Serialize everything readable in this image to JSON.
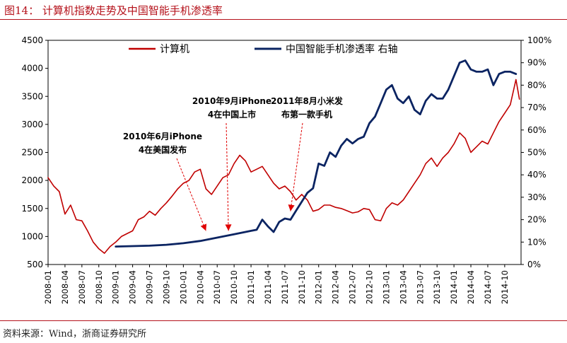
{
  "title": "图14：  计算机指数走势及中国智能手机渗透率",
  "source": "资料来源：Wind，浙商证券研究所",
  "chart_data": {
    "type": "line",
    "x_ticks": [
      "2008-01",
      "2008-04",
      "2008-07",
      "2008-10",
      "2009-01",
      "2009-04",
      "2009-07",
      "2009-10",
      "2010-01",
      "2010-04",
      "2010-07",
      "2010-10",
      "2011-01",
      "2011-04",
      "2011-07",
      "2011-10",
      "2012-01",
      "2012-04",
      "2012-07",
      "2012-10",
      "2013-01",
      "2013-04",
      "2013-07",
      "2013-10",
      "2014-01",
      "2014-04",
      "2014-07",
      "2014-10"
    ],
    "y_left": {
      "min": 500,
      "max": 4500,
      "ticks": [
        500,
        1000,
        1500,
        2000,
        2500,
        3000,
        3500,
        4000,
        4500
      ]
    },
    "y_right": {
      "min": 0,
      "max": 100,
      "ticks": [
        "0%",
        "10%",
        "20%",
        "30%",
        "40%",
        "50%",
        "60%",
        "70%",
        "80%",
        "90%",
        "100%"
      ]
    },
    "legend": {
      "position": "top",
      "items": [
        {
          "label": "计算机",
          "color": "#c00000"
        },
        {
          "label": "中国智能手机渗透率 右轴",
          "color": "#0b2462"
        }
      ]
    },
    "series": [
      {
        "name": "计算机",
        "axis": "left",
        "color": "#c00000",
        "points": [
          [
            "2008-01",
            2050
          ],
          [
            "2008-02",
            1900
          ],
          [
            "2008-03",
            1800
          ],
          [
            "2008-04",
            1400
          ],
          [
            "2008-05",
            1560
          ],
          [
            "2008-06",
            1300
          ],
          [
            "2008-07",
            1280
          ],
          [
            "2008-08",
            1100
          ],
          [
            "2008-09",
            900
          ],
          [
            "2008-10",
            780
          ],
          [
            "2008-11",
            700
          ],
          [
            "2008-12",
            820
          ],
          [
            "2009-01",
            900
          ],
          [
            "2009-02",
            1000
          ],
          [
            "2009-03",
            1050
          ],
          [
            "2009-04",
            1100
          ],
          [
            "2009-05",
            1300
          ],
          [
            "2009-06",
            1350
          ],
          [
            "2009-07",
            1450
          ],
          [
            "2009-08",
            1380
          ],
          [
            "2009-09",
            1500
          ],
          [
            "2009-10",
            1600
          ],
          [
            "2009-11",
            1720
          ],
          [
            "2009-12",
            1850
          ],
          [
            "2010-01",
            1950
          ],
          [
            "2010-02",
            2000
          ],
          [
            "2010-03",
            2150
          ],
          [
            "2010-04",
            2200
          ],
          [
            "2010-05",
            1850
          ],
          [
            "2010-06",
            1750
          ],
          [
            "2010-07",
            1900
          ],
          [
            "2010-08",
            2050
          ],
          [
            "2010-09",
            2100
          ],
          [
            "2010-10",
            2300
          ],
          [
            "2010-11",
            2450
          ],
          [
            "2010-12",
            2350
          ],
          [
            "2011-01",
            2150
          ],
          [
            "2011-02",
            2200
          ],
          [
            "2011-03",
            2250
          ],
          [
            "2011-04",
            2100
          ],
          [
            "2011-05",
            1950
          ],
          [
            "2011-06",
            1850
          ],
          [
            "2011-07",
            1900
          ],
          [
            "2011-08",
            1800
          ],
          [
            "2011-09",
            1650
          ],
          [
            "2011-10",
            1750
          ],
          [
            "2011-11",
            1650
          ],
          [
            "2011-12",
            1450
          ],
          [
            "2012-01",
            1480
          ],
          [
            "2012-02",
            1560
          ],
          [
            "2012-03",
            1560
          ],
          [
            "2012-04",
            1520
          ],
          [
            "2012-05",
            1500
          ],
          [
            "2012-06",
            1460
          ],
          [
            "2012-07",
            1420
          ],
          [
            "2012-08",
            1440
          ],
          [
            "2012-09",
            1500
          ],
          [
            "2012-10",
            1480
          ],
          [
            "2012-11",
            1300
          ],
          [
            "2012-12",
            1280
          ],
          [
            "2013-01",
            1500
          ],
          [
            "2013-02",
            1600
          ],
          [
            "2013-03",
            1560
          ],
          [
            "2013-04",
            1650
          ],
          [
            "2013-05",
            1800
          ],
          [
            "2013-06",
            1950
          ],
          [
            "2013-07",
            2100
          ],
          [
            "2013-08",
            2300
          ],
          [
            "2013-09",
            2400
          ],
          [
            "2013-10",
            2250
          ],
          [
            "2013-11",
            2400
          ],
          [
            "2013-12",
            2500
          ],
          [
            "2014-01",
            2650
          ],
          [
            "2014-02",
            2850
          ],
          [
            "2014-03",
            2750
          ],
          [
            "2014-04",
            2500
          ],
          [
            "2014-05",
            2600
          ],
          [
            "2014-06",
            2700
          ],
          [
            "2014-07",
            2650
          ],
          [
            "2014-08",
            2850
          ],
          [
            "2014-09",
            3050
          ],
          [
            "2014-10",
            3200
          ],
          [
            "2014-11",
            3350
          ],
          [
            "2014-12",
            3800
          ],
          [
            "2014-12-20",
            3450
          ]
        ]
      },
      {
        "name": "中国智能手机渗透率 右轴",
        "axis": "right",
        "color": "#0b2462",
        "points": [
          [
            "2009-01",
            8
          ],
          [
            "2009-04",
            8.2
          ],
          [
            "2009-07",
            8.4
          ],
          [
            "2009-10",
            8.8
          ],
          [
            "2010-01",
            9.5
          ],
          [
            "2010-04",
            10.5
          ],
          [
            "2010-07",
            12
          ],
          [
            "2010-10",
            13.5
          ],
          [
            "2011-01",
            15
          ],
          [
            "2011-02",
            15.5
          ],
          [
            "2011-03",
            20
          ],
          [
            "2011-04",
            17
          ],
          [
            "2011-05",
            14.5
          ],
          [
            "2011-06",
            19
          ],
          [
            "2011-07",
            20.5
          ],
          [
            "2011-08",
            20
          ],
          [
            "2011-09",
            24
          ],
          [
            "2011-10",
            28
          ],
          [
            "2011-11",
            32
          ],
          [
            "2011-12",
            34
          ],
          [
            "2012-01",
            45
          ],
          [
            "2012-02",
            44
          ],
          [
            "2012-03",
            50
          ],
          [
            "2012-04",
            48
          ],
          [
            "2012-05",
            53
          ],
          [
            "2012-06",
            56
          ],
          [
            "2012-07",
            54
          ],
          [
            "2012-08",
            56
          ],
          [
            "2012-09",
            57
          ],
          [
            "2012-10",
            63
          ],
          [
            "2012-11",
            66
          ],
          [
            "2012-12",
            72
          ],
          [
            "2013-01",
            78
          ],
          [
            "2013-02",
            80
          ],
          [
            "2013-03",
            74
          ],
          [
            "2013-04",
            72
          ],
          [
            "2013-05",
            75
          ],
          [
            "2013-06",
            69
          ],
          [
            "2013-07",
            67
          ],
          [
            "2013-08",
            73
          ],
          [
            "2013-09",
            76
          ],
          [
            "2013-10",
            74
          ],
          [
            "2013-11",
            74
          ],
          [
            "2013-12",
            78
          ],
          [
            "2014-01",
            84
          ],
          [
            "2014-02",
            90
          ],
          [
            "2014-03",
            91
          ],
          [
            "2014-04",
            87
          ],
          [
            "2014-05",
            86
          ],
          [
            "2014-06",
            86
          ],
          [
            "2014-07",
            87
          ],
          [
            "2014-08",
            80
          ],
          [
            "2014-09",
            85
          ],
          [
            "2014-10",
            86
          ],
          [
            "2014-11",
            86
          ],
          [
            "2014-12",
            85
          ]
        ]
      }
    ],
    "annotations": [
      {
        "lines": [
          "2010年6月iPhone",
          "4在美国发布"
        ],
        "target": [
          "2010-05",
          1050
        ]
      },
      {
        "lines": [
          "2010年9月iPhone",
          "4在中国上市"
        ],
        "target": [
          "2010-09",
          1050
        ]
      },
      {
        "lines": [
          "2011年8月小米发",
          "布第一款手机"
        ],
        "target": [
          "2011-08",
          1400
        ]
      }
    ]
  }
}
